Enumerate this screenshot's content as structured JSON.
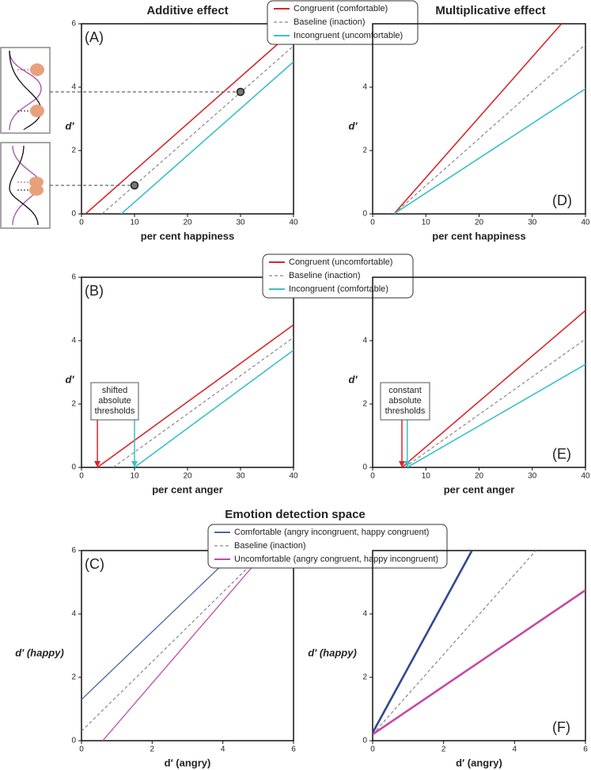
{
  "chart_data": [
    {
      "type": "line",
      "label": "(A)",
      "title": "Additive effect",
      "xlabel": "per cent happiness",
      "ylabel": "d′",
      "xlim": [
        0,
        40
      ],
      "ylim": [
        0,
        6
      ],
      "xticks": [
        0,
        10,
        20,
        30,
        40
      ],
      "yticks": [
        0,
        2,
        4,
        6
      ],
      "series": [
        {
          "name": "Congruent (comfortable)",
          "color": "#d9262b",
          "dashed": false,
          "x": [
            0.75,
            40
          ],
          "values": [
            0,
            5.8
          ]
        },
        {
          "name": "Baseline (inaction)",
          "color": "#888888",
          "dashed": true,
          "x": [
            3.9,
            40
          ],
          "values": [
            0,
            5.3
          ]
        },
        {
          "name": "Incongruent (uncomfortable)",
          "color": "#3bbfc7",
          "dashed": false,
          "x": [
            7.5,
            40
          ],
          "values": [
            0,
            4.8
          ]
        }
      ],
      "points": {
        "x": [
          10,
          30
        ],
        "values": [
          0.9,
          3.85
        ]
      }
    },
    {
      "type": "line",
      "label": "(D)",
      "title": "Multiplicative effect",
      "xlabel": "per cent happiness",
      "ylabel": "d′",
      "xlim": [
        0,
        40
      ],
      "ylim": [
        0,
        6
      ],
      "xticks": [
        0,
        10,
        20,
        30,
        40
      ],
      "yticks": [
        0,
        2,
        4
      ],
      "series": [
        {
          "color": "#d9262b",
          "dashed": false,
          "x": [
            4,
            35.5
          ],
          "values": [
            0,
            6
          ]
        },
        {
          "color": "#888888",
          "dashed": true,
          "x": [
            4,
            40
          ],
          "values": [
            0,
            5.35
          ]
        },
        {
          "color": "#3bbfc7",
          "dashed": false,
          "x": [
            4,
            40
          ],
          "values": [
            0,
            3.95
          ]
        }
      ]
    },
    {
      "type": "line",
      "label": "(B)",
      "xlabel": "per cent anger",
      "ylabel": "d′",
      "xlim": [
        0,
        40
      ],
      "ylim": [
        0,
        6
      ],
      "xticks": [
        0,
        10,
        20,
        30,
        40
      ],
      "yticks": [
        0,
        2,
        4,
        6
      ],
      "series": [
        {
          "name": "Congruent (uncomfortable)",
          "color": "#d9262b",
          "dashed": false,
          "x": [
            3,
            40
          ],
          "values": [
            0,
            4.5
          ]
        },
        {
          "name": "Baseline (inaction)",
          "color": "#888888",
          "dashed": true,
          "x": [
            6,
            40
          ],
          "values": [
            0,
            4.1
          ]
        },
        {
          "name": "Incongruent (comfortable)",
          "color": "#3bbfc7",
          "dashed": false,
          "x": [
            10,
            40
          ],
          "values": [
            0,
            3.7
          ]
        }
      ],
      "annotation": [
        "shifted",
        "absolute",
        "thresholds"
      ]
    },
    {
      "type": "line",
      "label": "(E)",
      "xlabel": "per cent anger",
      "ylabel": "d′",
      "xlim": [
        0,
        40
      ],
      "ylim": [
        0,
        6
      ],
      "xticks": [
        0,
        10,
        20,
        30,
        40
      ],
      "yticks": [
        0,
        2,
        4
      ],
      "series": [
        {
          "color": "#d9262b",
          "dashed": false,
          "x": [
            5.5,
            40
          ],
          "values": [
            0,
            4.95
          ]
        },
        {
          "color": "#888888",
          "dashed": true,
          "x": [
            6,
            40
          ],
          "values": [
            0,
            4.05
          ]
        },
        {
          "color": "#3bbfc7",
          "dashed": false,
          "x": [
            6.5,
            40
          ],
          "values": [
            0,
            3.25
          ]
        }
      ],
      "annotation": [
        "constant",
        "absolute",
        "thresholds"
      ]
    },
    {
      "type": "line",
      "label": "(C)",
      "title": "Emotion detection space",
      "xlabel": "d′ (angry)",
      "ylabel": "d′ (happy)",
      "xlim": [
        0,
        6
      ],
      "ylim": [
        0,
        6
      ],
      "xticks": [
        0,
        2,
        4,
        6
      ],
      "yticks": [
        0,
        2,
        4,
        6
      ],
      "series": [
        {
          "name": "Comfortable (angry incongruent, happy congruent)",
          "color": "#4a68a8",
          "dashed": false,
          "x": [
            0,
            4.4
          ],
          "values": [
            1.3,
            6
          ]
        },
        {
          "name": "Baseline (inaction)",
          "color": "#888888",
          "dashed": true,
          "x": [
            0,
            5.2
          ],
          "values": [
            0.3,
            6
          ]
        },
        {
          "name": "Uncomfortable (angry congruent, happy incongruent)",
          "color": "#c34aa6",
          "dashed": false,
          "x": [
            0.6,
            5.0
          ],
          "values": [
            0,
            5.7
          ]
        }
      ]
    },
    {
      "type": "line",
      "label": "(F)",
      "xlabel": "d′ (angry)",
      "ylabel": "d′ (happy)",
      "xlim": [
        0,
        6
      ],
      "ylim": [
        0,
        6
      ],
      "xticks": [
        0,
        2,
        4,
        6
      ],
      "yticks": [
        0,
        2,
        4
      ],
      "series": [
        {
          "color": "#34478f",
          "dashed": false,
          "x": [
            0,
            2.8
          ],
          "values": [
            0.25,
            6
          ]
        },
        {
          "color": "#888888",
          "dashed": true,
          "x": [
            0,
            4.6
          ],
          "values": [
            0.2,
            6
          ]
        },
        {
          "color": "#c34aa6",
          "dashed": false,
          "x": [
            0,
            6
          ],
          "values": [
            0.2,
            4.75
          ]
        }
      ]
    }
  ]
}
